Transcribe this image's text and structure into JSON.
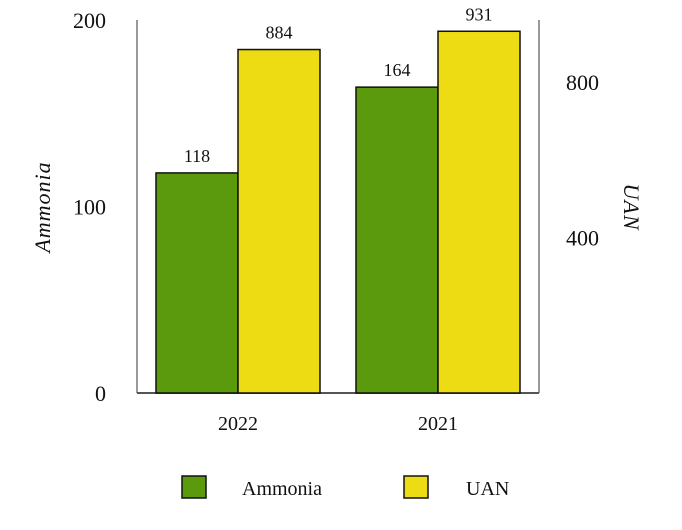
{
  "chart_data": {
    "type": "bar",
    "categories": [
      "2022",
      "2021"
    ],
    "series": [
      {
        "name": "Ammonia",
        "values": [
          118,
          164
        ],
        "axis": "left",
        "color": "#5b990d"
      },
      {
        "name": "UAN",
        "values": [
          884,
          931
        ],
        "axis": "right",
        "color": "#eddc14"
      }
    ],
    "ylabel": "Ammonia",
    "y2label": "UAN",
    "ylim": [
      0,
      200
    ],
    "y2lim": [
      0,
      960
    ],
    "yticks": [
      0,
      100,
      200
    ],
    "y2ticks": [
      400,
      800
    ],
    "grid": false,
    "legend_position": "bottom"
  }
}
